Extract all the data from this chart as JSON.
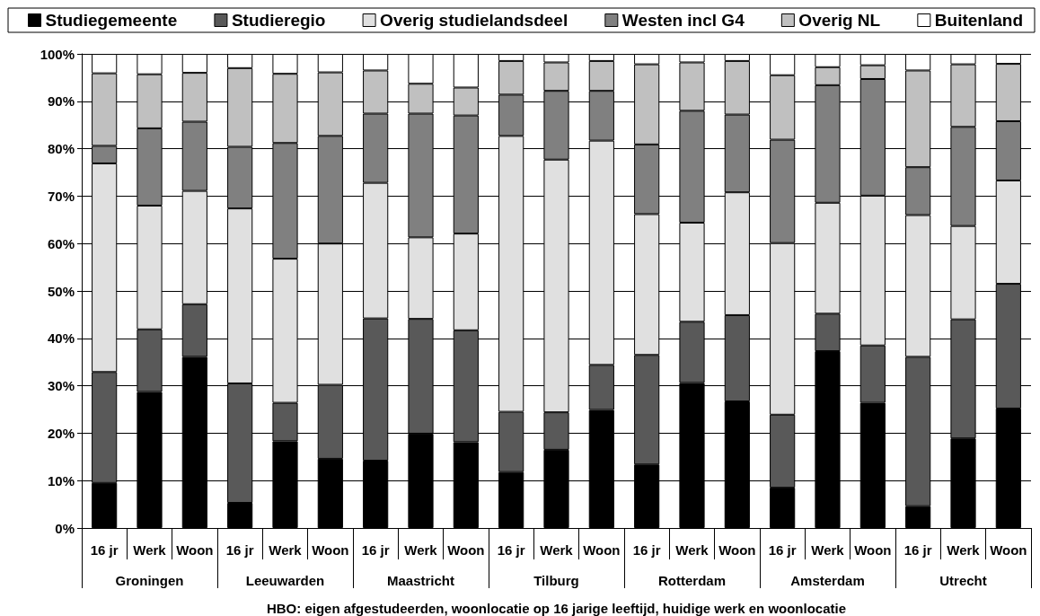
{
  "chart_data": {
    "type": "bar",
    "stacked": true,
    "categories": [
      "16 jr",
      "Werk",
      "Woon",
      "16 jr",
      "Werk",
      "Woon",
      "16 jr",
      "Werk",
      "Woon",
      "16 jr",
      "Werk",
      "Woon",
      "16 jr",
      "Werk",
      "Woon",
      "16 jr",
      "Werk",
      "Woon",
      "16 jr",
      "Werk",
      "Woon"
    ],
    "series": [
      {
        "name": "Studiegemeente",
        "color": "#000000",
        "values": [
          9.5,
          28.7,
          36.1,
          5.3,
          18.3,
          14.6,
          14.2,
          19.9,
          18.1,
          11.8,
          16.5,
          24.9,
          13.4,
          30.6,
          26.7,
          8.5,
          37.3,
          26.4,
          4.6,
          18.9,
          25.2
        ]
      },
      {
        "name": "Studieregio",
        "color": "#595959",
        "values": [
          23.4,
          13.2,
          11.1,
          25.2,
          8.1,
          15.6,
          30.0,
          24.2,
          23.6,
          12.7,
          7.9,
          9.5,
          23.1,
          12.9,
          18.2,
          15.4,
          7.9,
          12.1,
          31.5,
          25.1,
          26.3
        ]
      },
      {
        "name": "Overig studielandsdeel",
        "color": "#e0e0e0",
        "values": [
          44.0,
          26.1,
          23.9,
          36.9,
          30.4,
          29.8,
          28.6,
          17.2,
          20.4,
          58.2,
          53.3,
          47.3,
          29.7,
          20.9,
          25.9,
          36.2,
          23.4,
          31.6,
          29.9,
          19.7,
          21.8
        ]
      },
      {
        "name": "Westen incl G4",
        "color": "#808080",
        "values": [
          3.7,
          16.3,
          14.6,
          13.0,
          24.4,
          22.7,
          14.6,
          26.1,
          24.9,
          8.7,
          14.5,
          10.5,
          14.7,
          23.6,
          16.4,
          21.8,
          24.8,
          24.6,
          10.1,
          20.9,
          12.5
        ]
      },
      {
        "name": "Overig NL",
        "color": "#c0c0c0",
        "values": [
          15.3,
          11.4,
          10.3,
          16.6,
          14.6,
          13.4,
          9.1,
          6.3,
          5.9,
          7.1,
          6.0,
          6.3,
          16.9,
          10.2,
          11.3,
          13.6,
          3.8,
          2.9,
          20.4,
          13.2,
          12.1
        ]
      },
      {
        "name": "Buitenland",
        "color": "#ffffff",
        "values": [
          4.1,
          4.3,
          4.0,
          3.0,
          4.2,
          3.9,
          3.5,
          6.3,
          7.1,
          1.5,
          1.8,
          1.5,
          2.2,
          1.8,
          1.5,
          4.5,
          2.8,
          2.4,
          3.5,
          2.2,
          2.1
        ]
      }
    ],
    "ylim": [
      0,
      100
    ],
    "yticks": [
      {
        "value": 0,
        "label": "0%"
      },
      {
        "value": 10,
        "label": "10%"
      },
      {
        "value": 20,
        "label": "20%"
      },
      {
        "value": 30,
        "label": "30%"
      },
      {
        "value": 40,
        "label": "40%"
      },
      {
        "value": 50,
        "label": "50%"
      },
      {
        "value": 60,
        "label": "60%"
      },
      {
        "value": 70,
        "label": "70%"
      },
      {
        "value": 80,
        "label": "80%"
      },
      {
        "value": 90,
        "label": "90%"
      },
      {
        "value": 100,
        "label": "100%"
      }
    ],
    "xlabel": "HBO: eigen afgestudeerden, woonlocatie op 16 jarige leeftijd, huidige werk en woonlocatie",
    "annotations": [
      "Groningen",
      "Leeuwarden",
      "Maastricht",
      "Tilburg",
      "Rotterdam",
      "Amsterdam",
      "Utrecht"
    ],
    "grid": "y",
    "legend": "top"
  }
}
